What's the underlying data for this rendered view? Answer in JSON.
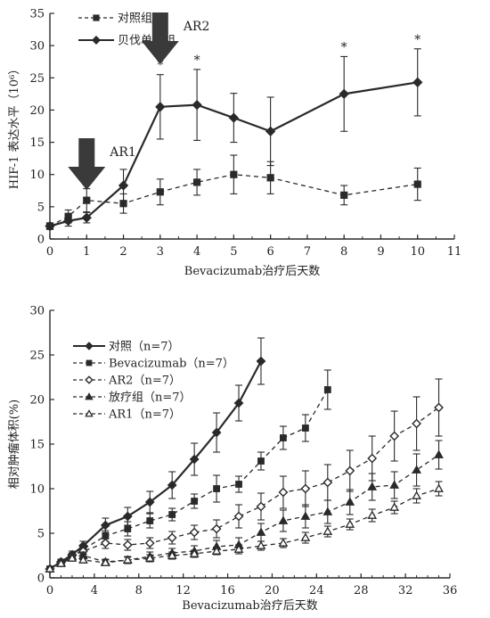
{
  "chart_data": [
    {
      "type": "line",
      "xlabel": "Bevacizumab治疗后天数",
      "ylabel": "HIF-1 表达水平（10⁶）",
      "xlim": [
        0,
        11
      ],
      "ylim": [
        0,
        35
      ],
      "xticks": [
        "0",
        "1",
        "2",
        "3",
        "4",
        "5",
        "6",
        "7",
        "8",
        "9",
        "10",
        "11"
      ],
      "yticks": [
        "0",
        "5",
        "10",
        "15",
        "20",
        "25",
        "30",
        "35"
      ],
      "legend_position": "top-left",
      "series": [
        {
          "name": "对照组",
          "style": "dashed",
          "marker": "square",
          "x": [
            0,
            0.5,
            1,
            2,
            3,
            4,
            5,
            6,
            8,
            10
          ],
          "y": [
            2.0,
            3.5,
            6.0,
            5.5,
            7.3,
            8.8,
            10.0,
            9.5,
            6.8,
            8.5
          ],
          "err": [
            0.5,
            1.0,
            1.8,
            1.5,
            2.0,
            2.0,
            3.0,
            2.5,
            1.5,
            2.5
          ]
        },
        {
          "name": "贝伐单抗组",
          "style": "solid",
          "marker": "diamond",
          "x": [
            0,
            0.5,
            1,
            2,
            3,
            4,
            5,
            6,
            8,
            10
          ],
          "y": [
            2.0,
            2.8,
            3.3,
            8.3,
            20.5,
            20.8,
            18.8,
            16.7,
            22.5,
            24.3
          ],
          "err": [
            0.5,
            0.8,
            0.8,
            2.5,
            5.0,
            5.5,
            3.8,
            5.3,
            5.8,
            5.2
          ]
        }
      ],
      "significance": [
        {
          "x": 3,
          "label": "*"
        },
        {
          "x": 4,
          "label": "*"
        },
        {
          "x": 8,
          "label": "*"
        },
        {
          "x": 10,
          "label": "*"
        }
      ],
      "annotations": [
        {
          "label": "AR1",
          "x": 1
        },
        {
          "label": "AR2",
          "x": 3
        }
      ]
    },
    {
      "type": "line",
      "xlabel": "Bevacizumab治疗后天数",
      "ylabel": "相对肿瘤体积(%)",
      "xlim": [
        0,
        36
      ],
      "ylim": [
        0,
        30
      ],
      "xticks": [
        "0",
        "4",
        "8",
        "12",
        "16",
        "20",
        "24",
        "28",
        "32",
        "36"
      ],
      "yticks": [
        "0",
        "5",
        "10",
        "15",
        "20",
        "25",
        "30"
      ],
      "legend_position": "top-left",
      "series": [
        {
          "name": "对照（n=7）",
          "style": "solid",
          "marker": "diamond",
          "x": [
            0,
            1,
            2,
            3,
            5,
            7,
            9,
            11,
            13,
            15,
            17,
            19
          ],
          "y": [
            1.0,
            1.8,
            2.6,
            3.6,
            5.9,
            6.9,
            8.5,
            10.4,
            13.3,
            16.3,
            19.6,
            24.3
          ],
          "err": [
            0.2,
            0.3,
            0.4,
            0.5,
            0.8,
            1.0,
            1.2,
            1.5,
            1.8,
            2.2,
            2.0,
            2.6
          ]
        },
        {
          "name": "Bevacizumab（n=7）",
          "style": "dashed",
          "marker": "square",
          "x": [
            0,
            1,
            2,
            3,
            5,
            7,
            9,
            11,
            13,
            15,
            17,
            19,
            21,
            23,
            25
          ],
          "y": [
            1.0,
            1.7,
            2.4,
            3.2,
            4.7,
            5.5,
            6.4,
            7.1,
            8.6,
            10.0,
            10.5,
            13.1,
            15.7,
            16.8,
            21.1
          ],
          "err": [
            0.2,
            0.3,
            0.4,
            0.5,
            0.6,
            0.8,
            0.8,
            0.7,
            0.8,
            1.5,
            0.9,
            1.0,
            1.3,
            1.5,
            2.2
          ]
        },
        {
          "name": "AR2（n=7）",
          "style": "dashed",
          "marker": "open-diamond",
          "x": [
            0,
            1,
            2,
            3,
            5,
            7,
            9,
            11,
            13,
            15,
            17,
            19,
            21,
            23,
            25,
            27,
            29,
            31,
            33,
            35
          ],
          "y": [
            1.0,
            1.7,
            2.5,
            3.0,
            3.9,
            3.7,
            3.9,
            4.5,
            5.1,
            5.5,
            6.9,
            8.0,
            9.6,
            10.0,
            10.7,
            12.0,
            13.4,
            15.9,
            17.3,
            19.1
          ],
          "err": [
            0.2,
            0.3,
            0.3,
            0.4,
            0.6,
            0.6,
            0.6,
            0.7,
            0.8,
            1.0,
            1.3,
            1.5,
            1.8,
            2.0,
            2.0,
            2.3,
            2.5,
            2.8,
            3.0,
            3.2
          ]
        },
        {
          "name": "放疗组（n=7）",
          "style": "dashed",
          "marker": "triangle",
          "x": [
            0,
            1,
            2,
            3,
            5,
            7,
            9,
            11,
            13,
            15,
            17,
            19,
            21,
            23,
            25,
            27,
            29,
            31,
            33,
            35
          ],
          "y": [
            1.0,
            1.7,
            2.4,
            2.5,
            1.8,
            2.0,
            2.4,
            2.8,
            3.0,
            3.5,
            3.7,
            5.1,
            6.4,
            6.9,
            7.4,
            8.5,
            10.2,
            10.4,
            12.1,
            13.8
          ],
          "err": [
            0.2,
            0.3,
            0.3,
            0.4,
            0.3,
            0.4,
            0.5,
            0.5,
            0.6,
            0.7,
            0.8,
            1.0,
            1.2,
            1.3,
            1.3,
            1.4,
            1.5,
            1.5,
            1.8,
            1.6
          ]
        },
        {
          "name": "AR1（n=7）",
          "style": "dashed",
          "marker": "open-triangle",
          "x": [
            0,
            1,
            2,
            3,
            5,
            7,
            9,
            11,
            13,
            15,
            17,
            19,
            21,
            23,
            25,
            27,
            29,
            31,
            33,
            35
          ],
          "y": [
            1.0,
            1.6,
            2.2,
            2.0,
            1.7,
            2.0,
            2.2,
            2.5,
            2.7,
            3.0,
            3.2,
            3.6,
            3.9,
            4.5,
            5.2,
            6.0,
            7.0,
            7.9,
            9.2,
            10.0
          ],
          "err": [
            0.2,
            0.3,
            0.3,
            0.3,
            0.3,
            0.3,
            0.4,
            0.4,
            0.4,
            0.4,
            0.5,
            0.5,
            0.5,
            0.6,
            0.6,
            0.6,
            0.7,
            0.7,
            0.8,
            0.8
          ]
        }
      ]
    }
  ]
}
